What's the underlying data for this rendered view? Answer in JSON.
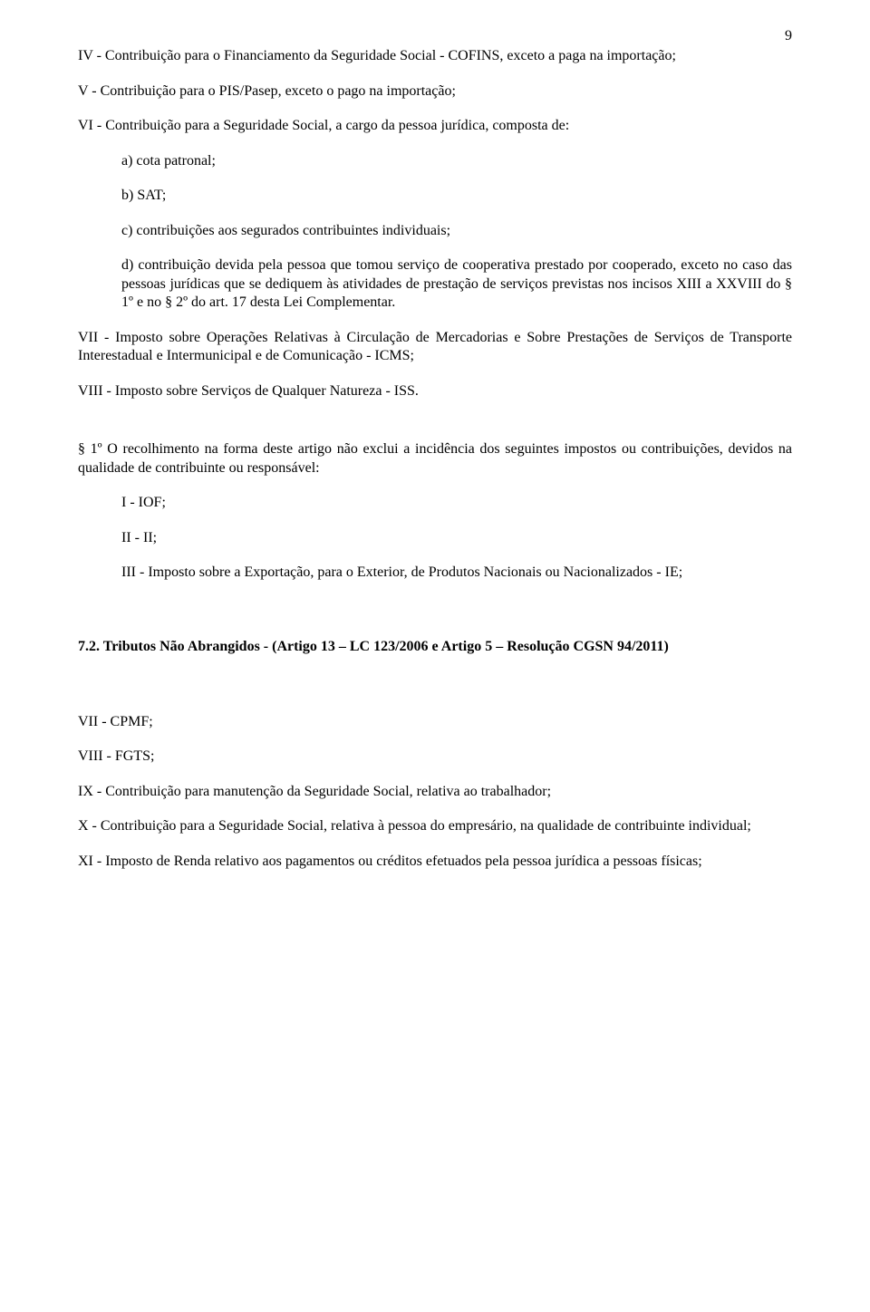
{
  "page_number": "9",
  "p_iv": "IV - Contribuição para o Financiamento da Seguridade Social - COFINS, exceto a paga na importação;",
  "p_v": "V - Contribuição para o PIS/Pasep, exceto o pago na importação;",
  "p_vi": "VI - Contribuição para a Seguridade Social, a cargo da pessoa jurídica, composta de:",
  "p_vi_a": "a) cota patronal;",
  "p_vi_b": "b) SAT;",
  "p_vi_c": "c) contribuições aos segurados contribuintes individuais;",
  "p_vi_d": "d) contribuição devida pela pessoa que tomou serviço de cooperativa prestado por cooperado, exceto no caso das pessoas jurídicas que se dediquem às atividades de prestação de serviços previstas nos incisos XIII a XXVIII do § 1º e no § 2º do art. 17 desta Lei Complementar.",
  "p_vii": "VII - Imposto sobre Operações Relativas à Circulação de Mercadorias e Sobre Prestações de Serviços de Transporte Interestadual e Intermunicipal e de Comunicação - ICMS;",
  "p_viii": "VIII - Imposto sobre Serviços de Qualquer Natureza - ISS.",
  "p_s1": "§ 1º O recolhimento na forma deste artigo não exclui a incidência dos seguintes impostos ou contribuições, devidos na qualidade de contribuinte ou responsável:",
  "p_s1_i": "I - IOF;",
  "p_s1_ii": "II - II;",
  "p_s1_iii": "III - Imposto sobre a Exportação, para o Exterior, de Produtos Nacionais ou Nacionalizados - IE;",
  "heading_72": "7.2. Tributos Não Abrangidos  - (Artigo 13 – LC 123/2006 e  Artigo 5 – Resolução CGSN 94/2011)",
  "p2_vii": "VII - CPMF;",
  "p2_viii": "VIII - FGTS;",
  "p2_ix": "IX - Contribuição para manutenção da Seguridade Social, relativa ao trabalhador;",
  "p2_x": " X - Contribuição para a Seguridade Social, relativa à pessoa do empresário, na qualidade de contribuinte individual;",
  "p2_xi": "XI - Imposto de Renda relativo aos pagamentos ou créditos efetuados pela pessoa jurídica a pessoas físicas;"
}
